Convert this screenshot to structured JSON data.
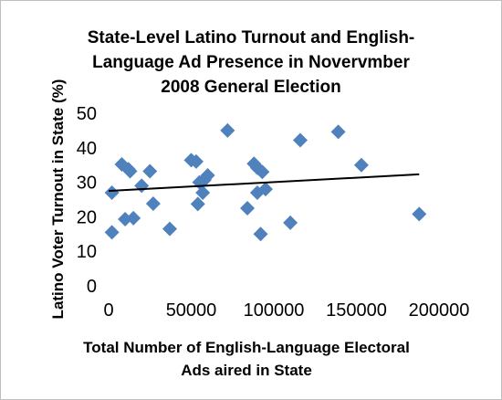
{
  "chart_data": {
    "type": "scatter",
    "title": "State-Level Latino Turnout and English-\nLanguage Ad Presence in Novervmber\n2008 General Election",
    "xlabel": "Total Number of English-Language Electoral\nAds aired in State",
    "ylabel": "Latino Voter Turnout in State (%)",
    "xlim": [
      0,
      200000
    ],
    "ylim": [
      0,
      50
    ],
    "x_ticks": [
      "0",
      "50000",
      "100000",
      "150000",
      "200000"
    ],
    "y_ticks": [
      "0",
      "10",
      "20",
      "30",
      "40",
      "50"
    ],
    "grid": false,
    "legend": "none",
    "marker": "diamond",
    "marker_color": "#4f81bd",
    "trendline": {
      "type": "linear",
      "x": [
        0,
        188000
      ],
      "y": [
        27.5,
        32.3
      ],
      "color": "#000000"
    },
    "points": [
      {
        "x": 2000,
        "y": 27
      },
      {
        "x": 2000,
        "y": 15.5
      },
      {
        "x": 8000,
        "y": 35.2
      },
      {
        "x": 10000,
        "y": 19.3
      },
      {
        "x": 12000,
        "y": 33.8
      },
      {
        "x": 13000,
        "y": 33.2
      },
      {
        "x": 15000,
        "y": 19.6
      },
      {
        "x": 20000,
        "y": 29
      },
      {
        "x": 25000,
        "y": 33.2
      },
      {
        "x": 27000,
        "y": 23.8
      },
      {
        "x": 37000,
        "y": 16.5
      },
      {
        "x": 50000,
        "y": 36.4
      },
      {
        "x": 53000,
        "y": 36
      },
      {
        "x": 54000,
        "y": 23.7
      },
      {
        "x": 55000,
        "y": 30
      },
      {
        "x": 57000,
        "y": 27
      },
      {
        "x": 58000,
        "y": 30.7
      },
      {
        "x": 60000,
        "y": 32
      },
      {
        "x": 72000,
        "y": 45
      },
      {
        "x": 84000,
        "y": 22.5
      },
      {
        "x": 88000,
        "y": 35.4
      },
      {
        "x": 90000,
        "y": 27
      },
      {
        "x": 90000,
        "y": 34.2
      },
      {
        "x": 92000,
        "y": 15
      },
      {
        "x": 93000,
        "y": 33
      },
      {
        "x": 95000,
        "y": 28
      },
      {
        "x": 110000,
        "y": 18.3
      },
      {
        "x": 116000,
        "y": 42.2
      },
      {
        "x": 139000,
        "y": 44.6
      },
      {
        "x": 153000,
        "y": 35
      },
      {
        "x": 188000,
        "y": 20.8
      }
    ]
  }
}
